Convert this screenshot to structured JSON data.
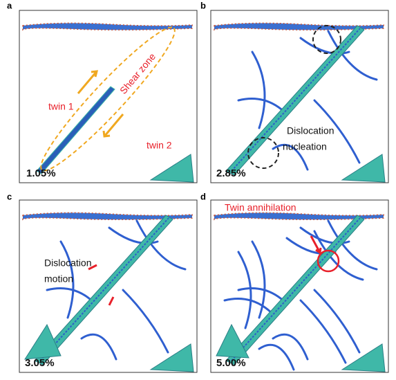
{
  "panels": [
    {
      "label": "a",
      "strain": "1.05%",
      "annotations": [
        "twin 1",
        "Shear zone",
        "twin 2"
      ]
    },
    {
      "label": "b",
      "strain": "2.85%",
      "annotations": [
        "Dislocation",
        "nucleation"
      ]
    },
    {
      "label": "c",
      "strain": "3.05%",
      "annotations": [
        "Dislocation",
        "motion"
      ]
    },
    {
      "label": "d",
      "strain": "5.00%",
      "annotations": [
        "Twin annihilation"
      ]
    }
  ]
}
